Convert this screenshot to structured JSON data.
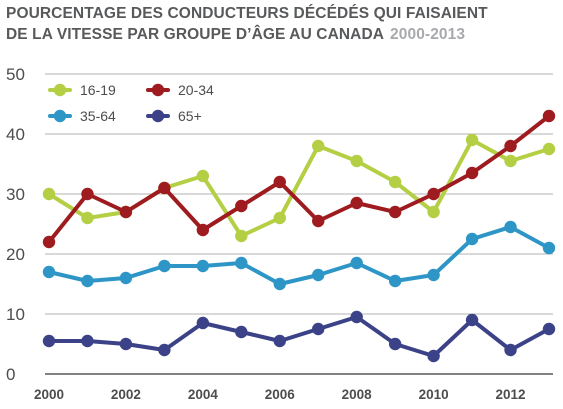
{
  "chart_data": {
    "type": "line",
    "title_line1": "POURCENTAGE DES CONDUCTEURS DÉCÉDÉS QUI FAISAIENT",
    "title_line2": "DE LA VITESSE PAR GROUPE D’ÂGE AU CANADA",
    "subtitle": "2000-2013",
    "xlabel": "",
    "ylabel": "",
    "x": [
      2000,
      2001,
      2002,
      2003,
      2004,
      2005,
      2006,
      2007,
      2008,
      2009,
      2010,
      2011,
      2012,
      2013
    ],
    "x_tick_labels": [
      "2000",
      "2002",
      "2004",
      "2006",
      "2008",
      "2010",
      "2012"
    ],
    "x_tick_values": [
      2000,
      2002,
      2004,
      2006,
      2008,
      2010,
      2012
    ],
    "y_tick_labels": [
      "0",
      "10",
      "20",
      "30",
      "40",
      "50"
    ],
    "y_tick_values": [
      0,
      10,
      20,
      30,
      40,
      50
    ],
    "xlim": [
      2000,
      2013
    ],
    "ylim": [
      0,
      50
    ],
    "grid": "horizontal",
    "legend_position": "top-left",
    "series": [
      {
        "name": "16-19",
        "color": "#b5cf45",
        "values": [
          30,
          26,
          27,
          31,
          33,
          23,
          26,
          38,
          35.5,
          32,
          27,
          39,
          35.5,
          37.5
        ]
      },
      {
        "name": "20-34",
        "color": "#9e1b1f",
        "values": [
          22,
          30,
          27,
          31,
          24,
          28,
          32,
          25.5,
          28.5,
          27,
          30,
          33.5,
          38,
          43
        ]
      },
      {
        "name": "35-64",
        "color": "#2e96c6",
        "values": [
          17,
          15.5,
          16,
          18,
          18,
          18.5,
          15,
          16.5,
          18.5,
          15.5,
          16.5,
          22.5,
          24.5,
          21
        ]
      },
      {
        "name": "65+",
        "color": "#3b4287",
        "values": [
          5.5,
          5.5,
          5,
          4,
          8.5,
          7,
          5.5,
          7.5,
          9.5,
          5,
          3,
          9,
          4,
          7.5
        ]
      }
    ]
  }
}
